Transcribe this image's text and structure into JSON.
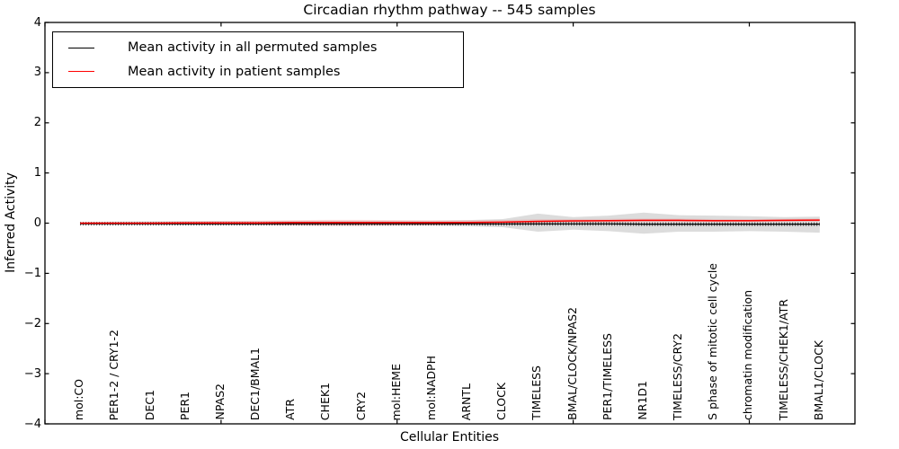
{
  "chart_data": {
    "type": "line",
    "title": "Circadian rhythm pathway -- 545 samples",
    "xlabel": "Cellular Entities",
    "ylabel": "Inferred Activity",
    "xlim": [
      0,
      23
    ],
    "ylim": [
      -4,
      4
    ],
    "grid": false,
    "yticks": [
      4,
      3,
      2,
      1,
      0,
      -1,
      -2,
      -3,
      -4
    ],
    "yticklabels": [
      "4",
      "3",
      "2",
      "1",
      "0",
      "−1",
      "−2",
      "−3",
      "−4"
    ],
    "xticks_values": [
      0,
      5,
      10,
      15,
      20
    ],
    "x": [
      1,
      2,
      3,
      4,
      5,
      6,
      7,
      8,
      9,
      10,
      11,
      12,
      13,
      14,
      15,
      16,
      17,
      18,
      19,
      20,
      21,
      22
    ],
    "categories": [
      "mol:CO",
      "PER1-2 / CRY1-2",
      "DEC1",
      "PER1",
      "NPAS2",
      "DEC1/BMAL1",
      "ATR",
      "CHEK1",
      "CRY2",
      "mol:HEME",
      "mol:NADPH",
      "ARNTL",
      "CLOCK",
      "TIMELESS",
      "BMAL/CLOCK/NPAS2",
      "PER1/TIMELESS",
      "NR1D1",
      "TIMELESS/CRY2",
      "S phase of mitotic cell cycle",
      "chromatin modification",
      "TIMELESS/CHEK1/ATR",
      "BMAL1/CLOCK"
    ],
    "series": [
      {
        "name": "permuted-mean",
        "color": "#000000",
        "values": [
          -0.01,
          -0.01,
          -0.01,
          -0.01,
          -0.01,
          -0.01,
          -0.01,
          -0.01,
          -0.01,
          -0.01,
          -0.01,
          -0.01,
          -0.015,
          -0.015,
          -0.015,
          -0.015,
          -0.02,
          -0.02,
          -0.02,
          -0.02,
          -0.02,
          -0.02
        ]
      },
      {
        "name": "patient-mean",
        "color": "#ff0000",
        "values": [
          0.0,
          0.0,
          0.0,
          0.005,
          0.005,
          0.005,
          0.01,
          0.01,
          0.01,
          0.01,
          0.01,
          0.015,
          0.02,
          0.035,
          0.045,
          0.05,
          0.055,
          0.055,
          0.05,
          0.05,
          0.055,
          0.06
        ]
      }
    ],
    "bands": [
      {
        "name": "permuted-spread",
        "color": "rgba(128,128,128,0.28)",
        "upper": [
          0.02,
          0.03,
          0.035,
          0.04,
          0.04,
          0.04,
          0.045,
          0.05,
          0.05,
          0.05,
          0.05,
          0.06,
          0.08,
          0.19,
          0.12,
          0.15,
          0.21,
          0.16,
          0.15,
          0.14,
          0.12,
          0.13
        ],
        "lower": [
          -0.02,
          -0.03,
          -0.035,
          -0.04,
          -0.04,
          -0.04,
          -0.045,
          -0.05,
          -0.05,
          -0.05,
          -0.05,
          -0.06,
          -0.08,
          -0.17,
          -0.13,
          -0.16,
          -0.21,
          -0.17,
          -0.17,
          -0.16,
          -0.17,
          -0.19
        ]
      },
      {
        "name": "patient-spread",
        "color": "rgba(255,40,40,0.15)",
        "upper": [
          0.01,
          0.015,
          0.02,
          0.035,
          0.045,
          0.05,
          0.06,
          0.065,
          0.065,
          0.06,
          0.055,
          0.055,
          0.06,
          0.075,
          0.08,
          0.085,
          0.09,
          0.09,
          0.08,
          0.08,
          0.085,
          0.09
        ],
        "lower": [
          -0.01,
          -0.015,
          -0.02,
          -0.025,
          -0.035,
          -0.04,
          -0.05,
          -0.055,
          -0.055,
          -0.05,
          -0.045,
          -0.025,
          -0.02,
          -0.005,
          0.01,
          0.015,
          0.02,
          0.02,
          0.02,
          0.02,
          0.025,
          0.03
        ]
      }
    ],
    "legend": {
      "position": "upper left",
      "entries": [
        {
          "label": "Mean activity in all permuted samples",
          "color": "#000000"
        },
        {
          "label": "Mean activity in patient samples",
          "color": "#ff0000"
        }
      ]
    }
  }
}
